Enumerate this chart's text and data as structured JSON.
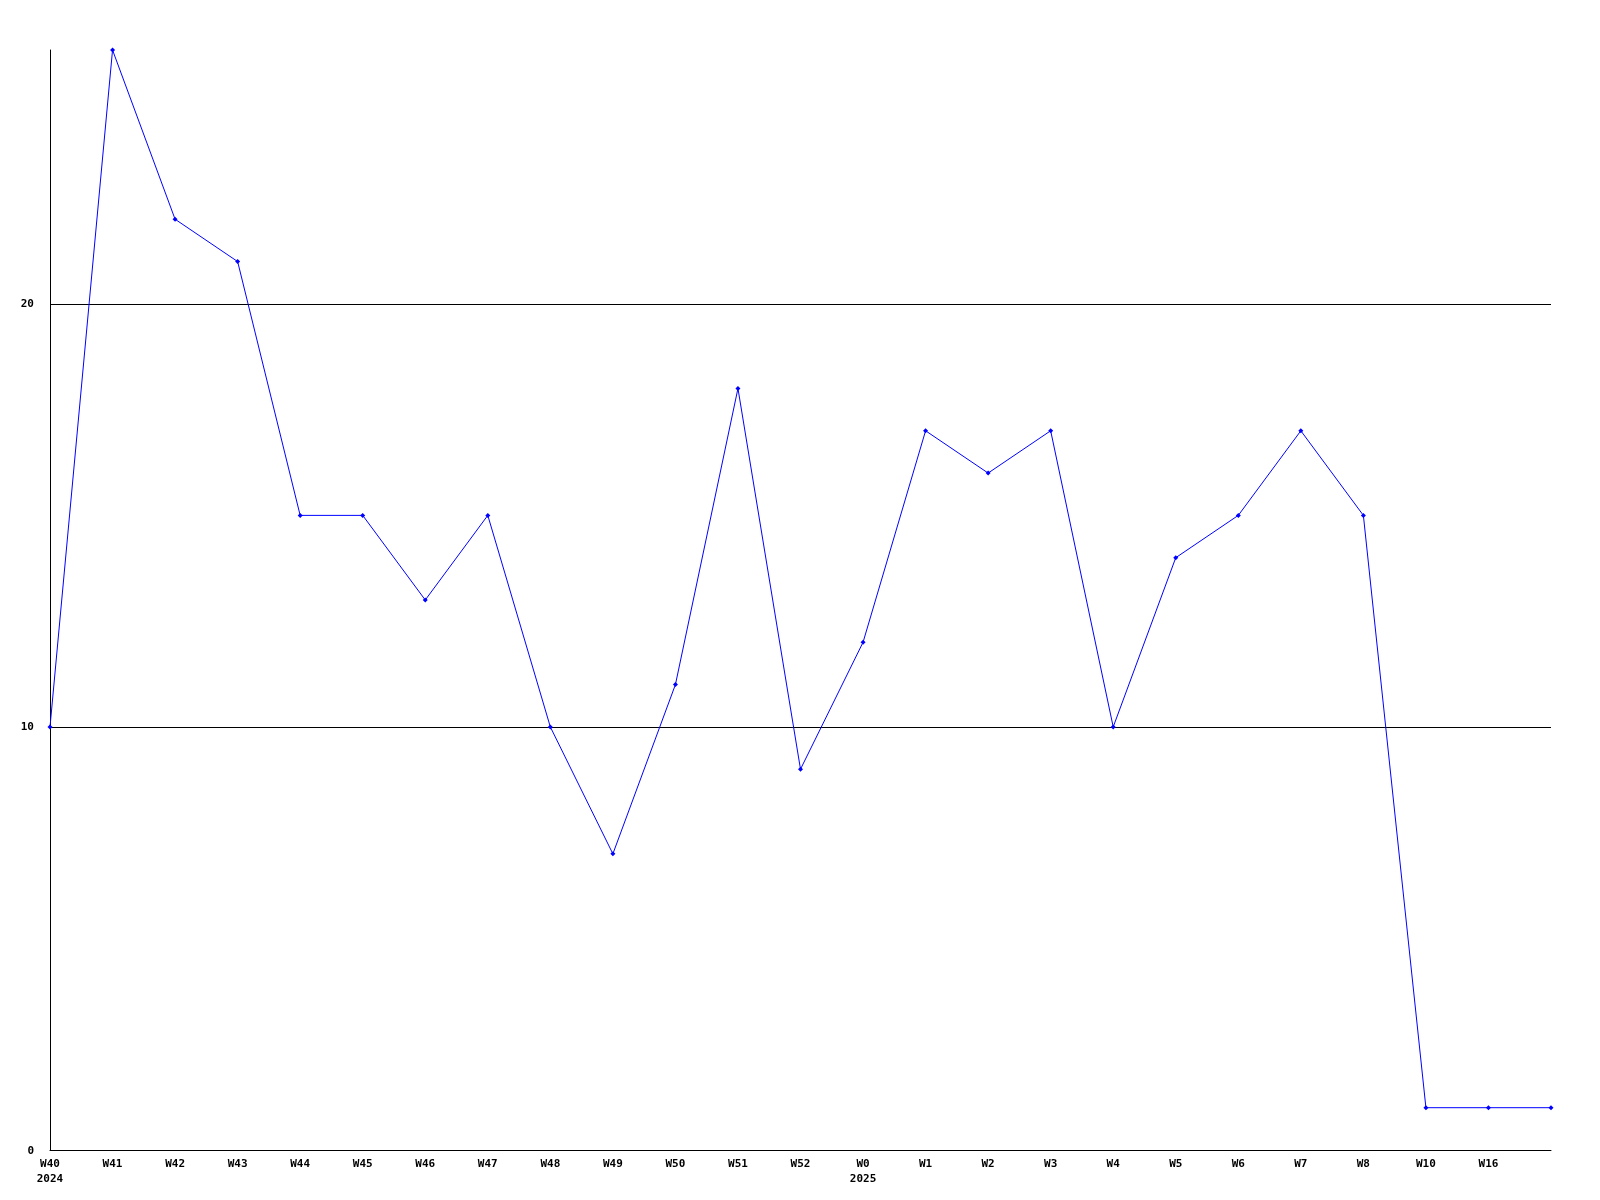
{
  "chart_data": {
    "type": "line",
    "categories": [
      "W40\n2024",
      "W41",
      "W42",
      "W43",
      "W44",
      "W45",
      "W46",
      "W47",
      "W48",
      "W49",
      "W50",
      "W51",
      "W52",
      "W0\n2025",
      "W1",
      "W2",
      "W3",
      "W4",
      "W5",
      "W6",
      "W7",
      "W8",
      "W10",
      "W16",
      null
    ],
    "series": [
      {
        "color": "#0000ff",
        "values": [
          10,
          26,
          22,
          21,
          15,
          15,
          13,
          15,
          10,
          7,
          11,
          18,
          9,
          12,
          17,
          16,
          17,
          10,
          14,
          15,
          17,
          15,
          1,
          1,
          1
        ]
      }
    ],
    "ylim": [
      0,
      26
    ],
    "yticks": [
      0,
      10,
      20
    ],
    "grid": "y",
    "marker": "diamond",
    "line_style": "solid"
  }
}
